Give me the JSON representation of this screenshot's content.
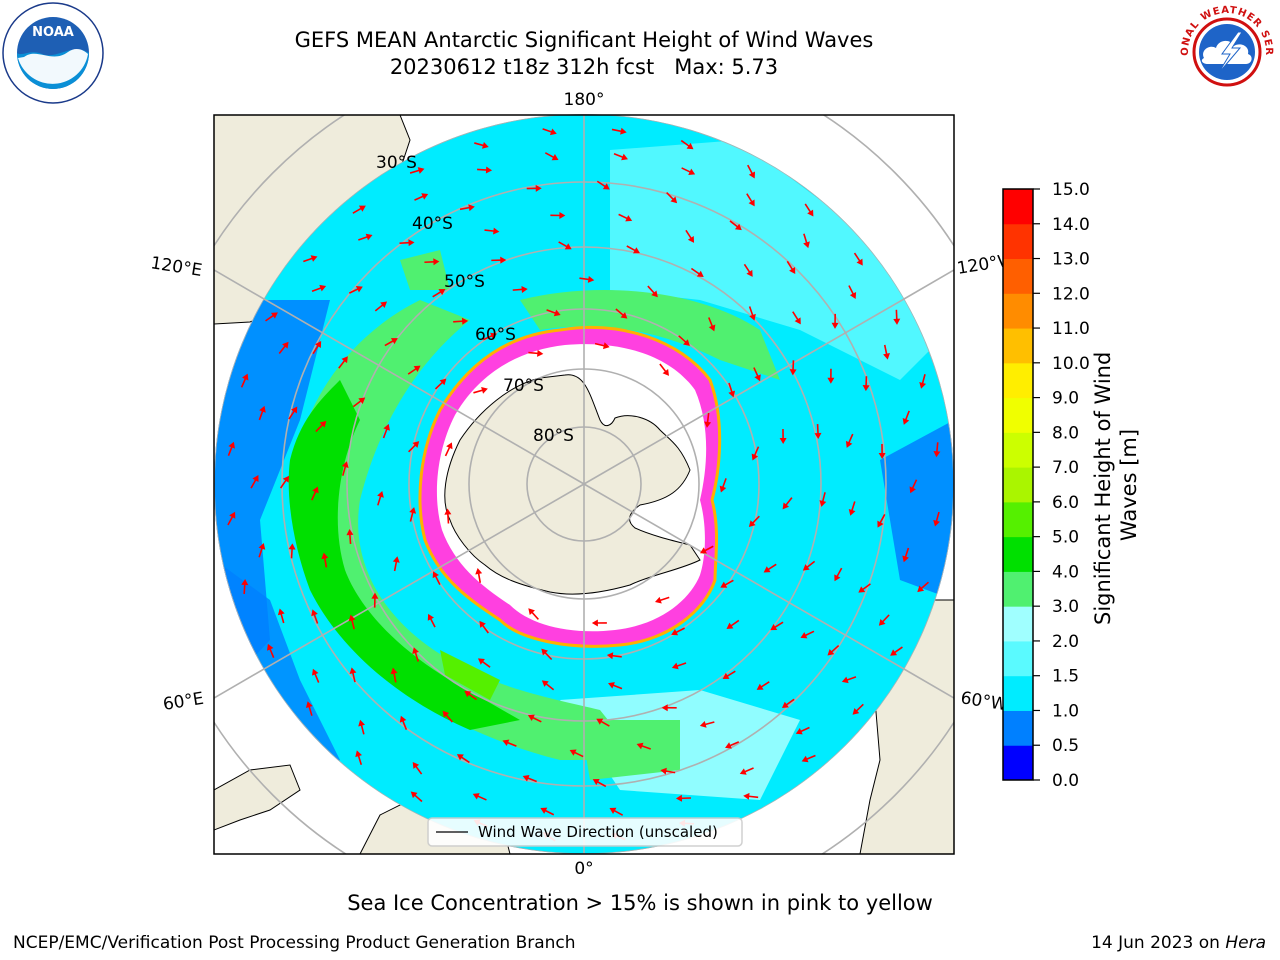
{
  "title": {
    "line1": "GEFS MEAN Antarctic Significant Height of Wind Waves",
    "line2": "20230612 t18z 312h fcst   Max: 5.73"
  },
  "map": {
    "projection": "south-polar-stereographic",
    "lat_labels": [
      "30°S",
      "40°S",
      "50°S",
      "60°S",
      "70°S",
      "80°S"
    ],
    "lon_labels": {
      "top": "180°",
      "bottom": "0°",
      "left_upper": "120°E",
      "left_lower": "60°E",
      "right_upper": "120°W",
      "right_lower": "60°W"
    },
    "land_color": "#efecdc",
    "ice_color": "#ffffff",
    "arrow_color": "#ff0000",
    "legend_label": "Wind Wave Direction (unscaled)"
  },
  "colorbar": {
    "label": "Significant Height of Wind Waves [m]",
    "ticks": [
      "0.0",
      "0.5",
      "1.0",
      "1.5",
      "2.0",
      "3.0",
      "4.0",
      "5.0",
      "6.0",
      "7.0",
      "8.0",
      "9.0",
      "10.0",
      "11.0",
      "12.0",
      "13.0",
      "14.0",
      "15.0"
    ],
    "colors": [
      "#0000ff",
      "#0080ff",
      "#00ecff",
      "#5afaff",
      "#a0ffff",
      "#50f070",
      "#00e000",
      "#55f000",
      "#aaf500",
      "#ccff00",
      "#f0ff00",
      "#ffee00",
      "#ffbf00",
      "#ff8c00",
      "#ff5f00",
      "#ff3300",
      "#ff0000"
    ]
  },
  "note": "Sea Ice Concentration > 15% is shown in pink to yellow",
  "footer": {
    "left": "NCEP/EMC/Verification Post Processing Product Generation Branch",
    "right_prefix": "14 Jun 2023 on ",
    "right_machine": "Hera"
  }
}
